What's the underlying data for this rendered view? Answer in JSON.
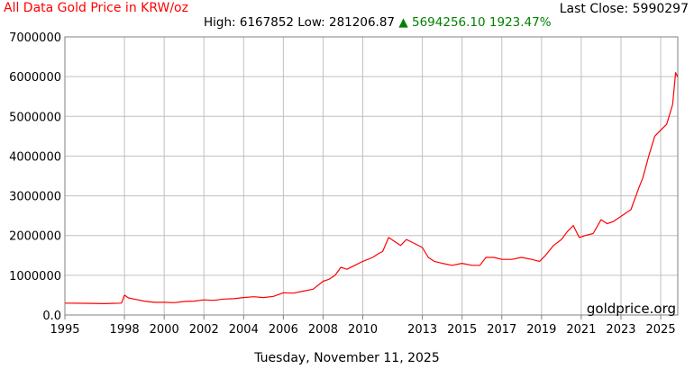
{
  "header": {
    "title": "All Data Gold Price in KRW/oz",
    "last_close_label": "Last Close:",
    "last_close_value": "5990297",
    "high_label": "High:",
    "high_value": "6167852",
    "low_label": "Low:",
    "low_value": "281206.87",
    "change_arrow": "▲",
    "change_value": "5694256.10",
    "change_pct": "1923.47%"
  },
  "footer": {
    "date": "Tuesday, November 11, 2025"
  },
  "watermark": "goldprice.org",
  "colors": {
    "line": "#ff0000",
    "grid": "#c0c0c0",
    "change": "#008000"
  },
  "chart_data": {
    "type": "line",
    "title": "All Data Gold Price in KRW/oz",
    "xlim": [
      1995.0,
      2025.86
    ],
    "ylim": [
      0,
      7000000
    ],
    "x_ticks": [
      1995,
      1998,
      2000,
      2002,
      2004,
      2006,
      2008,
      2010,
      2013,
      2015,
      2017,
      2019,
      2021,
      2023,
      2025
    ],
    "y_ticks": [
      0,
      1000000,
      2000000,
      3000000,
      4000000,
      5000000,
      6000000,
      7000000
    ],
    "y_tick_labels": [
      "0.0",
      "1000000",
      "2000000",
      "3000000",
      "4000000",
      "5000000",
      "6000000",
      "7000000"
    ],
    "grid": true,
    "series": [
      {
        "x": [
          1995.0,
          1996.0,
          1997.0,
          1997.85,
          1998.0,
          1998.2,
          1998.6,
          1999.0,
          1999.5,
          2000.0,
          2000.5,
          2001.0,
          2001.5,
          2002.0,
          2002.5,
          2003.0,
          2003.5,
          2004.0,
          2004.5,
          2005.0,
          2005.5,
          2006.0,
          2006.5,
          2007.0,
          2007.5,
          2008.0,
          2008.3,
          2008.6,
          2008.9,
          2009.2,
          2009.6,
          2010.0,
          2010.5,
          2010.8,
          2011.0,
          2011.3,
          2011.6,
          2011.9,
          2012.2,
          2012.6,
          2013.0,
          2013.3,
          2013.6,
          2014.0,
          2014.5,
          2015.0,
          2015.5,
          2015.9,
          2016.2,
          2016.6,
          2017.0,
          2017.5,
          2018.0,
          2018.5,
          2018.9,
          2019.2,
          2019.6,
          2020.0,
          2020.3,
          2020.6,
          2020.9,
          2021.2,
          2021.6,
          2022.0,
          2022.3,
          2022.6,
          2022.9,
          2023.2,
          2023.5,
          2023.9,
          2024.1,
          2024.4,
          2024.7,
          2025.0,
          2025.3,
          2025.6,
          2025.75,
          2025.86
        ],
        "y": [
          300000,
          295000,
          285000,
          300000,
          500000,
          430000,
          390000,
          350000,
          320000,
          320000,
          310000,
          340000,
          350000,
          380000,
          370000,
          400000,
          410000,
          440000,
          460000,
          440000,
          470000,
          560000,
          550000,
          600000,
          650000,
          850000,
          900000,
          1000000,
          1200000,
          1150000,
          1250000,
          1350000,
          1450000,
          1550000,
          1600000,
          1950000,
          1850000,
          1750000,
          1900000,
          1800000,
          1700000,
          1450000,
          1350000,
          1300000,
          1250000,
          1300000,
          1250000,
          1250000,
          1450000,
          1450000,
          1400000,
          1400000,
          1450000,
          1400000,
          1350000,
          1500000,
          1750000,
          1900000,
          2100000,
          2250000,
          1950000,
          2000000,
          2050000,
          2400000,
          2300000,
          2350000,
          2450000,
          2550000,
          2650000,
          3200000,
          3450000,
          4000000,
          4500000,
          4650000,
          4800000,
          5300000,
          6100000,
          5990297
        ]
      }
    ]
  }
}
